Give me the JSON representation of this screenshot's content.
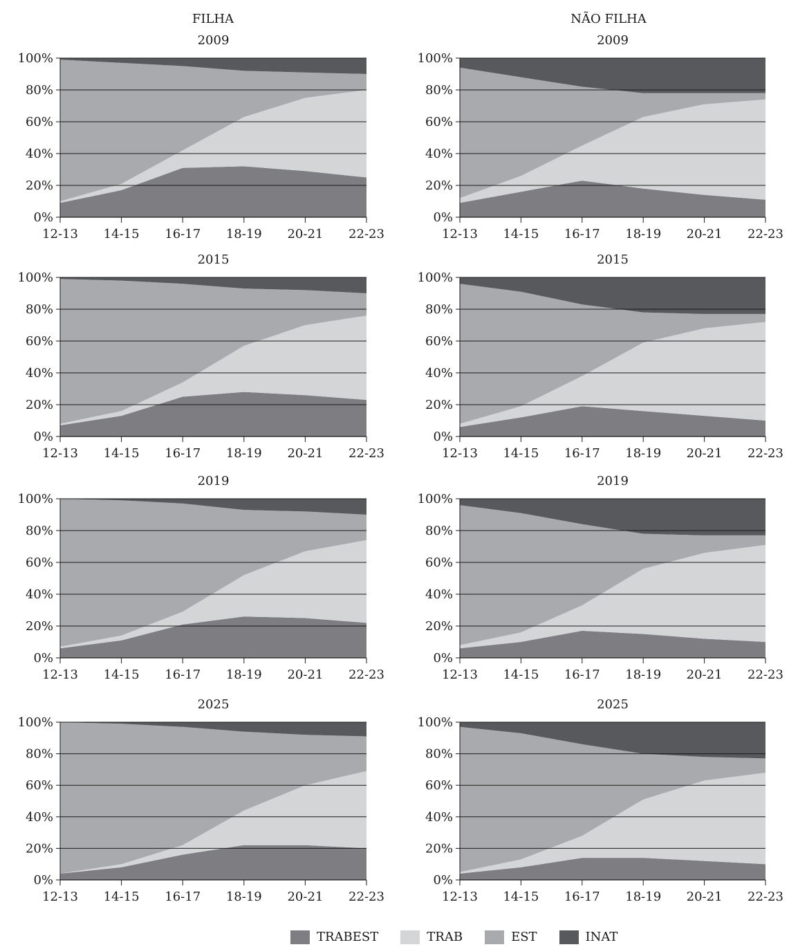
{
  "column_titles": [
    "FILHA",
    "NÃO FILHA"
  ],
  "colors": {
    "TRABEST": "#7e7e82",
    "TRAB": "#d4d5d7",
    "EST": "#a9aaad",
    "INAT": "#58595c"
  },
  "legend": [
    "TRABEST",
    "TRAB",
    "EST",
    "INAT"
  ],
  "chart_data": [
    {
      "type": "area",
      "stacked": true,
      "group": "FILHA",
      "title": "2009",
      "categories": [
        "12-13",
        "14-15",
        "16-17",
        "18-19",
        "20-21",
        "22-23"
      ],
      "y_ticks": [
        "0%",
        "20%",
        "40%",
        "60%",
        "80%",
        "100%"
      ],
      "ylim": [
        0,
        100
      ],
      "series": [
        {
          "name": "TRABEST",
          "values": [
            9,
            17,
            31,
            32,
            29,
            25
          ]
        },
        {
          "name": "TRAB",
          "values": [
            1,
            4,
            11,
            31,
            46,
            55
          ]
        },
        {
          "name": "EST",
          "values": [
            89,
            76,
            53,
            29,
            16,
            10
          ]
        },
        {
          "name": "INAT",
          "values": [
            1,
            3,
            5,
            8,
            9,
            10
          ]
        }
      ]
    },
    {
      "type": "area",
      "stacked": true,
      "group": "NÃO FILHA",
      "title": "2009",
      "categories": [
        "12-13",
        "14-15",
        "16-17",
        "18-19",
        "20-21",
        "22-23"
      ],
      "y_ticks": [
        "0%",
        "20%",
        "40%",
        "60%",
        "80%",
        "100%"
      ],
      "ylim": [
        0,
        100
      ],
      "series": [
        {
          "name": "TRABEST",
          "values": [
            9,
            16,
            23,
            18,
            14,
            11
          ]
        },
        {
          "name": "TRAB",
          "values": [
            3,
            10,
            22,
            45,
            57,
            63
          ]
        },
        {
          "name": "EST",
          "values": [
            82,
            62,
            37,
            15,
            7,
            4
          ]
        },
        {
          "name": "INAT",
          "values": [
            6,
            12,
            18,
            22,
            22,
            22
          ]
        }
      ]
    },
    {
      "type": "area",
      "stacked": true,
      "group": "FILHA",
      "title": "2015",
      "categories": [
        "12-13",
        "14-15",
        "16-17",
        "18-19",
        "20-21",
        "22-23"
      ],
      "y_ticks": [
        "0%",
        "20%",
        "40%",
        "60%",
        "80%",
        "100%"
      ],
      "ylim": [
        0,
        100
      ],
      "series": [
        {
          "name": "TRABEST",
          "values": [
            7,
            13,
            25,
            28,
            26,
            23
          ]
        },
        {
          "name": "TRAB",
          "values": [
            1,
            3,
            9,
            29,
            44,
            53
          ]
        },
        {
          "name": "EST",
          "values": [
            91,
            82,
            62,
            36,
            22,
            14
          ]
        },
        {
          "name": "INAT",
          "values": [
            1,
            2,
            4,
            7,
            8,
            10
          ]
        }
      ]
    },
    {
      "type": "area",
      "stacked": true,
      "group": "NÃO FILHA",
      "title": "2015",
      "categories": [
        "12-13",
        "14-15",
        "16-17",
        "18-19",
        "20-21",
        "22-23"
      ],
      "y_ticks": [
        "0%",
        "20%",
        "40%",
        "60%",
        "80%",
        "100%"
      ],
      "ylim": [
        0,
        100
      ],
      "series": [
        {
          "name": "TRABEST",
          "values": [
            6,
            12,
            19,
            16,
            13,
            10
          ]
        },
        {
          "name": "TRAB",
          "values": [
            2,
            7,
            19,
            43,
            55,
            62
          ]
        },
        {
          "name": "EST",
          "values": [
            88,
            72,
            45,
            19,
            9,
            5
          ]
        },
        {
          "name": "INAT",
          "values": [
            4,
            9,
            17,
            22,
            23,
            23
          ]
        }
      ]
    },
    {
      "type": "area",
      "stacked": true,
      "group": "FILHA",
      "title": "2019",
      "categories": [
        "12-13",
        "14-15",
        "16-17",
        "18-19",
        "20-21",
        "22-23"
      ],
      "y_ticks": [
        "0%",
        "20%",
        "40%",
        "60%",
        "80%",
        "100%"
      ],
      "ylim": [
        0,
        100
      ],
      "series": [
        {
          "name": "TRABEST",
          "values": [
            6,
            11,
            21,
            26,
            25,
            22
          ]
        },
        {
          "name": "TRAB",
          "values": [
            1,
            3,
            8,
            26,
            42,
            52
          ]
        },
        {
          "name": "EST",
          "values": [
            93,
            85,
            68,
            41,
            25,
            16
          ]
        },
        {
          "name": "INAT",
          "values": [
            0,
            1,
            3,
            7,
            8,
            10
          ]
        }
      ]
    },
    {
      "type": "area",
      "stacked": true,
      "group": "NÃO FILHA",
      "title": "2019",
      "categories": [
        "12-13",
        "14-15",
        "16-17",
        "18-19",
        "20-21",
        "22-23"
      ],
      "y_ticks": [
        "0%",
        "20%",
        "40%",
        "60%",
        "80%",
        "100%"
      ],
      "ylim": [
        0,
        100
      ],
      "series": [
        {
          "name": "TRABEST",
          "values": [
            6,
            10,
            17,
            15,
            12,
            10
          ]
        },
        {
          "name": "TRAB",
          "values": [
            2,
            6,
            16,
            41,
            54,
            61
          ]
        },
        {
          "name": "EST",
          "values": [
            88,
            75,
            51,
            22,
            11,
            6
          ]
        },
        {
          "name": "INAT",
          "values": [
            4,
            9,
            16,
            22,
            23,
            23
          ]
        }
      ]
    },
    {
      "type": "area",
      "stacked": true,
      "group": "FILHA",
      "title": "2025",
      "categories": [
        "12-13",
        "14-15",
        "16-17",
        "18-19",
        "20-21",
        "22-23"
      ],
      "y_ticks": [
        "0%",
        "20%",
        "40%",
        "60%",
        "80%",
        "100%"
      ],
      "ylim": [
        0,
        100
      ],
      "series": [
        {
          "name": "TRABEST",
          "values": [
            4,
            8,
            16,
            22,
            22,
            20
          ]
        },
        {
          "name": "TRAB",
          "values": [
            0,
            2,
            6,
            22,
            38,
            49
          ]
        },
        {
          "name": "EST",
          "values": [
            96,
            89,
            75,
            50,
            32,
            22
          ]
        },
        {
          "name": "INAT",
          "values": [
            0,
            1,
            3,
            6,
            8,
            9
          ]
        }
      ]
    },
    {
      "type": "area",
      "stacked": true,
      "group": "NÃO FILHA",
      "title": "2025",
      "categories": [
        "12-13",
        "14-15",
        "16-17",
        "18-19",
        "20-21",
        "22-23"
      ],
      "y_ticks": [
        "0%",
        "20%",
        "40%",
        "60%",
        "80%",
        "100%"
      ],
      "ylim": [
        0,
        100
      ],
      "series": [
        {
          "name": "TRABEST",
          "values": [
            4,
            8,
            14,
            14,
            12,
            10
          ]
        },
        {
          "name": "TRAB",
          "values": [
            1,
            5,
            14,
            37,
            51,
            58
          ]
        },
        {
          "name": "EST",
          "values": [
            92,
            80,
            58,
            29,
            15,
            9
          ]
        },
        {
          "name": "INAT",
          "values": [
            3,
            7,
            14,
            20,
            22,
            23
          ]
        }
      ]
    }
  ]
}
